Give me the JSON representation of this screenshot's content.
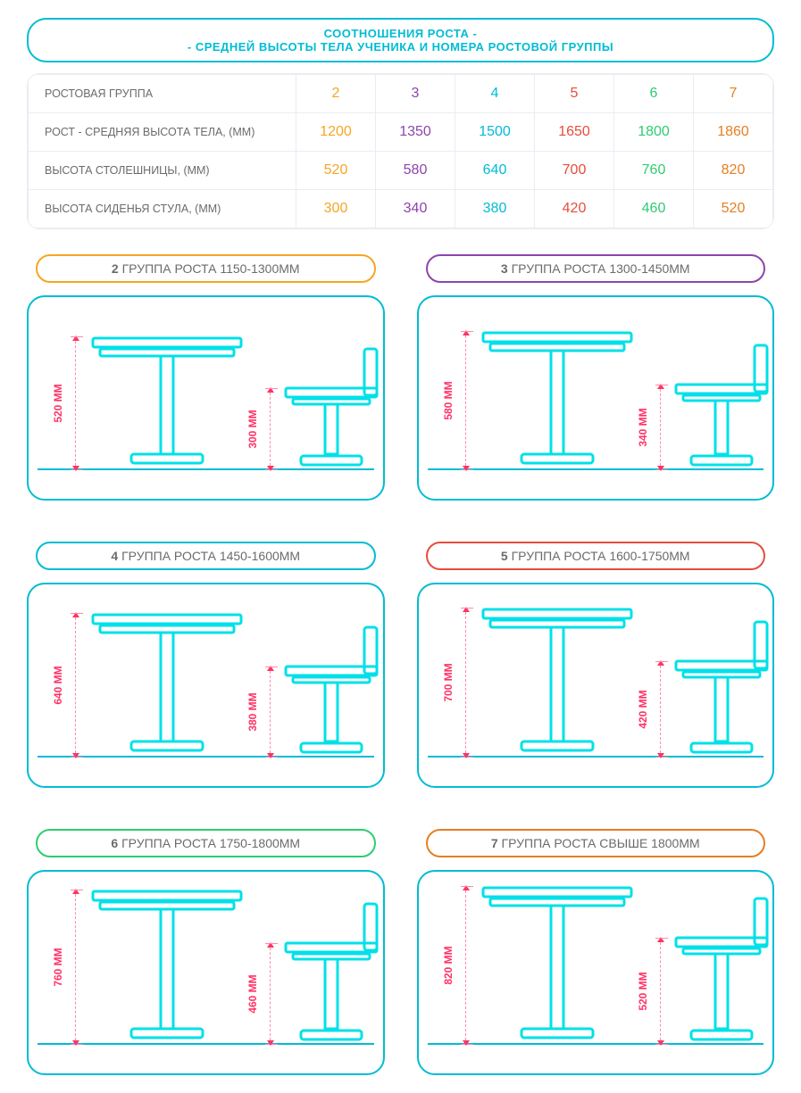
{
  "colors": {
    "cyan": "#00bcd4",
    "dim_line": "#ff8aa8",
    "dim_text": "#ff3366",
    "grid": "#e9edf2",
    "text_grey": "#6b6b6b"
  },
  "header": {
    "line1": "СООТНОШЕНИЯ РОСТА -",
    "line2": "- СРЕДНЕЙ ВЫСОТЫ ТЕЛА УЧЕНИКА И НОМЕРА РОСТОВОЙ ГРУППЫ"
  },
  "table": {
    "row_labels": [
      "РОСТОВАЯ ГРУППА",
      "РОСТ - СРЕДНЯЯ ВЫСОТА ТЕЛА, (ММ)",
      "ВЫСОТА СТОЛЕШНИЦЫ, (ММ)",
      "ВЫСОТА СИДЕНЬЯ СТУЛА, (ММ)"
    ],
    "columns": [
      {
        "group": "2",
        "height": "1200",
        "desk": "520",
        "seat": "300",
        "color": "#f5a623"
      },
      {
        "group": "3",
        "height": "1350",
        "desk": "580",
        "seat": "340",
        "color": "#8e44ad"
      },
      {
        "group": "4",
        "height": "1500",
        "desk": "640",
        "seat": "380",
        "color": "#00bcd4"
      },
      {
        "group": "5",
        "height": "1650",
        "desk": "700",
        "seat": "420",
        "color": "#e74c3c"
      },
      {
        "group": "6",
        "height": "1800",
        "desk": "760",
        "seat": "460",
        "color": "#2ecc71"
      },
      {
        "group": "7",
        "height": "1860",
        "desk": "820",
        "seat": "520",
        "color": "#e67e22"
      }
    ]
  },
  "cards": [
    {
      "num": "2",
      "range": "ГРУППА РОСТА 1150-1300ММ",
      "border": "#f5a623",
      "desk_mm": "520 ММ",
      "seat_mm": "300 ММ",
      "desk_h": 150,
      "seat_h": 92
    },
    {
      "num": "3",
      "range": "ГРУППА РОСТА 1300-1450ММ",
      "border": "#8e44ad",
      "desk_mm": "580 ММ",
      "seat_mm": "340 ММ",
      "desk_h": 156,
      "seat_h": 96
    },
    {
      "num": "4",
      "range": "ГРУППА РОСТА 1450-1600ММ",
      "border": "#00bcd4",
      "desk_mm": "640 ММ",
      "seat_mm": "380 ММ",
      "desk_h": 162,
      "seat_h": 102
    },
    {
      "num": "5",
      "range": "ГРУППА РОСТА 1600-1750ММ",
      "border": "#e74c3c",
      "desk_mm": "700 ММ",
      "seat_mm": "420 ММ",
      "desk_h": 168,
      "seat_h": 108
    },
    {
      "num": "6",
      "range": "ГРУППА РОСТА 1750-1800ММ",
      "border": "#2ecc71",
      "desk_mm": "760 ММ",
      "seat_mm": "460 ММ",
      "desk_h": 174,
      "seat_h": 114
    },
    {
      "num": "7",
      "range": "ГРУППА РОСТА СВЫШЕ 1800ММ",
      "border": "#e67e22",
      "desk_mm": "820 ММ",
      "seat_mm": "520 ММ",
      "desk_h": 178,
      "seat_h": 120
    }
  ],
  "diagram": {
    "stroke": "#00e0e8",
    "stroke_width": 3,
    "floor_offset_bottom": 32
  }
}
